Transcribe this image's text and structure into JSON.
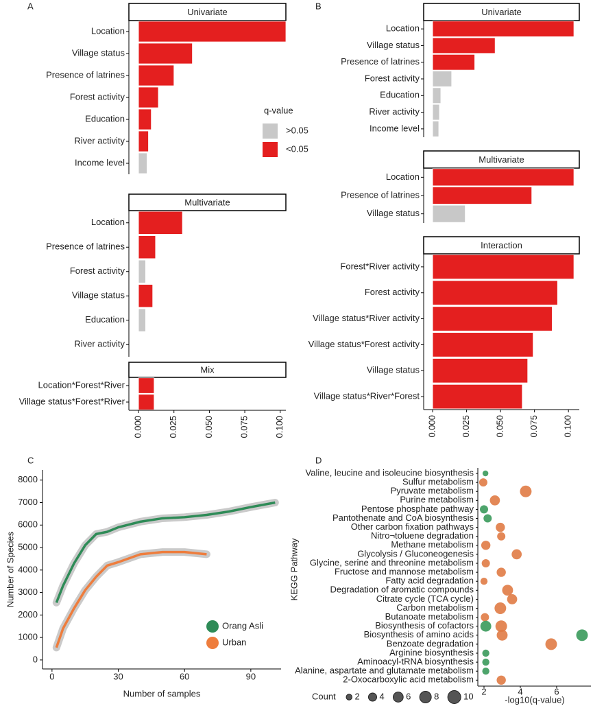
{
  "chart_data": [
    {
      "type": "bar",
      "label": "A",
      "facets": [
        {
          "title": "Univariate",
          "categories": [
            "Location",
            "Village status",
            "Presence of latrines",
            "Forest activity",
            "Education",
            "River activity",
            "Income level"
          ],
          "values": [
            0.104,
            0.038,
            0.025,
            0.014,
            0.009,
            0.007,
            0.006
          ],
          "colors": [
            "#e41f1f",
            "#e41f1f",
            "#e41f1f",
            "#e41f1f",
            "#e41f1f",
            "#e41f1f",
            "#c8c8c8"
          ]
        },
        {
          "title": "Multivariate",
          "categories": [
            "Location",
            "Presence of latrines",
            "Forest activity",
            "Village status",
            "Education",
            "River activity"
          ],
          "values": [
            0.031,
            0.012,
            0.005,
            0.01,
            0.005,
            0
          ],
          "colors": [
            "#e41f1f",
            "#e41f1f",
            "#c8c8c8",
            "#e41f1f",
            "#c8c8c8",
            "#c8c8c8"
          ]
        },
        {
          "title": "Mix",
          "categories": [
            "Location*Forest*River",
            "Village status*Forest*River"
          ],
          "values": [
            0.011,
            0.011
          ],
          "colors": [
            "#e41f1f",
            "#e41f1f"
          ]
        }
      ],
      "xlim": [
        -0.0068,
        0.104
      ],
      "xticks": [
        {
          "value": 0,
          "label": "0.000"
        },
        {
          "value": 0.025,
          "label": "0.025"
        },
        {
          "value": 0.05,
          "label": "0.050"
        },
        {
          "value": 0.075,
          "label": "0.075"
        },
        {
          "value": 0.1,
          "label": "0.100"
        }
      ],
      "legend": {
        "title": "q-value",
        "items": [
          {
            "label": ">0.05",
            "color": "#c8c8c8"
          },
          {
            "label": "<0.05",
            "color": "#e41f1f"
          }
        ]
      }
    },
    {
      "type": "bar",
      "label": "B",
      "facets": [
        {
          "title": "Univariate",
          "categories": [
            "Location",
            "Village status",
            "Presence of latrines",
            "Forest activity",
            "Education",
            "River activity",
            "Income level"
          ],
          "values": [
            0.104,
            0.046,
            0.031,
            0.014,
            0.006,
            0.005,
            0.0045
          ],
          "colors": [
            "#e41f1f",
            "#e41f1f",
            "#e41f1f",
            "#c8c8c8",
            "#c8c8c8",
            "#c8c8c8",
            "#c8c8c8"
          ]
        },
        {
          "title": "Multivariate",
          "categories": [
            "Location",
            "Presence of latrines",
            "Village status"
          ],
          "values": [
            0.104,
            0.073,
            0.024
          ],
          "colors": [
            "#e41f1f",
            "#e41f1f",
            "#c8c8c8"
          ]
        },
        {
          "title": "Interaction",
          "categories": [
            "Forest*River activity",
            "Forest activity",
            "Village status*River activity",
            "Village status*Forest activity",
            "Village status",
            "Village status*River*Forest"
          ],
          "values": [
            0.104,
            0.092,
            0.088,
            0.074,
            0.07,
            0.066
          ],
          "colors": [
            "#e41f1f",
            "#e41f1f",
            "#e41f1f",
            "#e41f1f",
            "#e41f1f",
            "#e41f1f"
          ]
        }
      ],
      "xlim": [
        -0.0066,
        0.108
      ],
      "xticks": [
        {
          "value": 0,
          "label": "0.000"
        },
        {
          "value": 0.025,
          "label": "0.025"
        },
        {
          "value": 0.05,
          "label": "0.050"
        },
        {
          "value": 0.075,
          "label": "0.075"
        },
        {
          "value": 0.1,
          "label": "0.100"
        }
      ]
    },
    {
      "type": "line",
      "label": "C",
      "x_label": "Number of samples",
      "y_label": "Number of Species",
      "series": [
        {
          "name": "Orang Asli",
          "color": "#2e8b57",
          "x": [
            2,
            5,
            10,
            15,
            20,
            25,
            30,
            40,
            50,
            60,
            70,
            80,
            90,
            101
          ],
          "values": [
            2550,
            3300,
            4300,
            5100,
            5600,
            5700,
            5900,
            6150,
            6300,
            6350,
            6450,
            6600,
            6800,
            7000
          ]
        },
        {
          "name": "Urban",
          "color": "#ee7d3d",
          "x": [
            2,
            5,
            10,
            15,
            20,
            25,
            30,
            40,
            50,
            60,
            70
          ],
          "values": [
            550,
            1400,
            2300,
            3100,
            3700,
            4200,
            4350,
            4700,
            4800,
            4800,
            4700
          ]
        }
      ],
      "xlim": [
        -4.3,
        103.7
      ],
      "xticks": [
        0,
        30,
        60,
        90
      ],
      "ylim": [
        -400,
        8450
      ],
      "yticks": [
        0,
        1000,
        2000,
        3000,
        4000,
        5000,
        6000,
        7000,
        8000
      ]
    },
    {
      "type": "scatter",
      "label": "D",
      "x_label": "-log10(q-value)",
      "y_label": "KEGG Pathway",
      "categories": [
        "Valine, leucine and isoleucine biosynthesis",
        "Sulfur metabolism",
        "Pyruvate metabolism",
        "Purine metabolism",
        "Pentose phosphate pathway",
        "Pantothenate and CoA biosynthesis",
        "Other carbon fixation pathways",
        "Nitro¬toluene degradation",
        "Methane metabolism",
        "Glycolysis / Gluconeogenesis",
        "Glycine, serine and threonine metabolism",
        "Fructose and mannose metabolism",
        "Fatty acid degradation",
        "Degradation of aromatic compounds",
        "Citrate cycle (TCA cycle)",
        "Carbon metabolism",
        "Butanoate metabolism",
        "Biosynthesis of cofactors",
        "Biosynthesis of amino acids",
        "Benzoate degradation",
        "Arginine biosynthesis",
        "Aminoacyl-tRNA biosynthesis",
        "Alanine, aspartate and glutamate metabolism",
        "2-Oxocarboxylic acid metabolism"
      ],
      "series": [
        {
          "color": "#e07b45",
          "values": [
            null,
            1.96,
            4.3,
            2.6,
            null,
            null,
            2.9,
            2.95,
            2.1,
            3.8,
            2.1,
            2.95,
            2.0,
            3.3,
            3.55,
            2.9,
            2.05,
            2.95,
            3.0,
            5.7,
            null,
            null,
            null,
            2.95
          ],
          "sizes": [
            null,
            4,
            8,
            6,
            null,
            null,
            5,
            4,
            5,
            6,
            4,
            5,
            3,
            7,
            6,
            8,
            4,
            8,
            7,
            8,
            null,
            null,
            null,
            5
          ]
        },
        {
          "color": "#3a9a5b",
          "values": [
            2.08,
            null,
            null,
            null,
            2.0,
            2.2,
            null,
            null,
            null,
            null,
            null,
            null,
            null,
            null,
            null,
            null,
            null,
            2.1,
            7.4,
            null,
            2.1,
            2.1,
            2.1,
            null
          ],
          "sizes": [
            2,
            null,
            null,
            null,
            4,
            4,
            null,
            null,
            null,
            null,
            null,
            null,
            null,
            null,
            null,
            null,
            null,
            7,
            8,
            null,
            3,
            3,
            3,
            null
          ]
        }
      ],
      "xlim": [
        1.66,
        7.89
      ],
      "xticks": [
        2,
        4,
        6
      ],
      "size_legend": {
        "title": "Count",
        "values": [
          2,
          4,
          6,
          8,
          10
        ]
      }
    }
  ]
}
